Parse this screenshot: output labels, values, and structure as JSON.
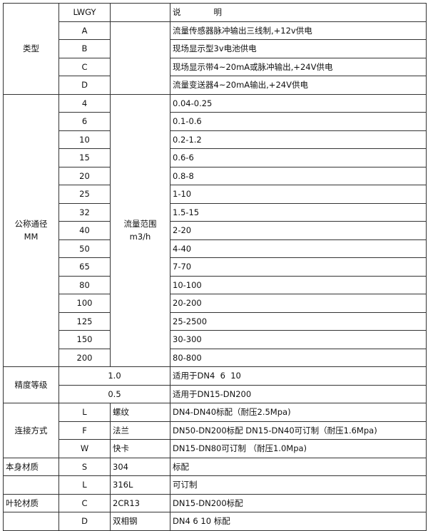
{
  "header": {
    "code": "LWGY",
    "desc_label": "说　　　　明"
  },
  "type": {
    "label": "类型",
    "rows": [
      {
        "code": "A",
        "desc": "流量传感器脉冲输出三线制,+12v供电"
      },
      {
        "code": "B",
        "desc": "现场显示型3v电池供电"
      },
      {
        "code": "C",
        "desc": "现场显示带4~20mA或脉冲输出,+24V供电"
      },
      {
        "code": "D",
        "desc": "流量变送器4~20mA输出,+24V供电"
      }
    ]
  },
  "diameter": {
    "label_line1": "公称通径",
    "label_line2": "MM",
    "flow_label_line1": "流量范围",
    "flow_label_line2": "m3/h",
    "rows": [
      {
        "dn": "4",
        "range": "0.04-0.25"
      },
      {
        "dn": "6",
        "range": "0.1-0.6"
      },
      {
        "dn": "10",
        "range": "0.2-1.2"
      },
      {
        "dn": "15",
        "range": "0.6-6"
      },
      {
        "dn": "20",
        "range": "0.8-8"
      },
      {
        "dn": "25",
        "range": "1-10"
      },
      {
        "dn": "32",
        "range": "1.5-15"
      },
      {
        "dn": "40",
        "range": "2-20"
      },
      {
        "dn": "50",
        "range": "4-40"
      },
      {
        "dn": "65",
        "range": "7-70"
      },
      {
        "dn": "80",
        "range": "10-100"
      },
      {
        "dn": "100",
        "range": "20-200"
      },
      {
        "dn": "125",
        "range": "25-2500"
      },
      {
        "dn": "150",
        "range": "30-300"
      },
      {
        "dn": "200",
        "range": "80-800"
      }
    ]
  },
  "accuracy": {
    "label": "精度等级",
    "rows": [
      {
        "grade": "1.0",
        "desc": "适用于DN4  6  10"
      },
      {
        "grade": "0.5",
        "desc": "适用于DN15-DN200"
      }
    ]
  },
  "connection": {
    "label": "连接方式",
    "rows": [
      {
        "code": "L",
        "name": "螺纹",
        "desc": "DN4-DN40标配（耐压2.5Mpa)"
      },
      {
        "code": "F",
        "name": "法兰",
        "desc": "DN50-DN200标配 DN15-DN40可订制（耐压1.6Mpa)"
      },
      {
        "code": "W",
        "name": "快卡",
        "desc": "DN15-DN80可订制 （耐压1.0Mpa)"
      }
    ]
  },
  "body_material": {
    "label": "本身材质",
    "rows": [
      {
        "code": "S",
        "name": "304",
        "desc": "标配"
      },
      {
        "code": "L",
        "name": "316L",
        "desc": "可订制"
      }
    ]
  },
  "impeller_material": {
    "label": "叶轮材质",
    "rows": [
      {
        "code": "C",
        "name": "2CR13",
        "desc": "DN15-DN200标配"
      },
      {
        "code": "D",
        "name": "双相钢",
        "desc": "DN4 6 10 标配"
      }
    ]
  }
}
